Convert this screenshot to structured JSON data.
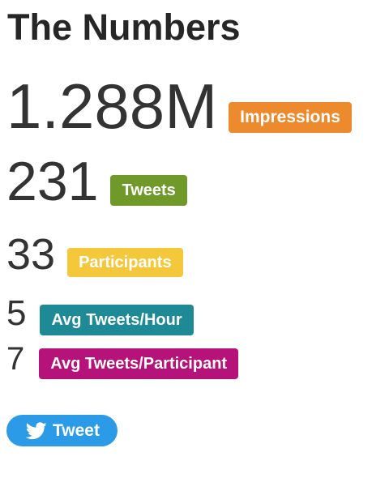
{
  "heading": "The Numbers",
  "stats": [
    {
      "value": "1.288M",
      "label": "Impressions",
      "color": "#ed8a2d"
    },
    {
      "value": "231",
      "label": "Tweets",
      "color": "#6f9a2a"
    },
    {
      "value": "33",
      "label": "Participants",
      "color": "#f4c83a"
    },
    {
      "value": "5",
      "label": "Avg Tweets/Hour",
      "color": "#1d8a96"
    },
    {
      "value": "7",
      "label": "Avg Tweets/Participant",
      "color": "#b5137a"
    }
  ],
  "tweet_button": {
    "label": "Tweet",
    "icon": "twitter-bird-icon",
    "color": "#2b9be8"
  }
}
